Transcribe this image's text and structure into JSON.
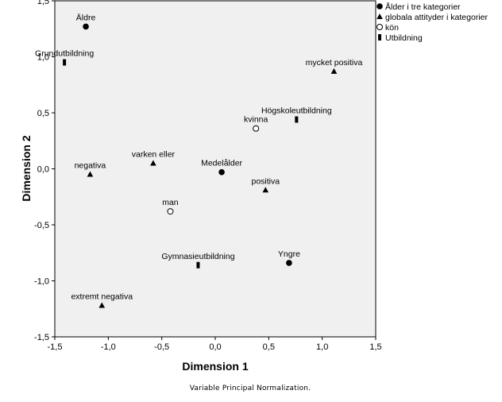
{
  "chart_data": {
    "type": "scatter",
    "xlabel": "Dimension 1",
    "ylabel": "Dimension 2",
    "xlim": [
      -1.5,
      1.5
    ],
    "ylim": [
      -1.5,
      1.5
    ],
    "xticks": [
      "-1,5",
      "-1,0",
      "-0,5",
      "0,0",
      "0,5",
      "1,0",
      "1,5"
    ],
    "yticks": [
      "-1,5",
      "-1,0",
      "-0,5",
      "0,0",
      "0,5",
      "1,0",
      "1,5"
    ],
    "grid": false,
    "legend_position": "top-right, outside plot",
    "footnote": "Variable Principal Normalization.",
    "colors": {
      "plot_background": "#f0f0f0",
      "marker": "#000000"
    },
    "series": [
      {
        "name": "Ålder i tre kategorier",
        "marker": "filled-circle",
        "points": [
          {
            "label": "Äldre",
            "x": -1.21,
            "y": 1.27
          },
          {
            "label": "Medelålder",
            "x": 0.06,
            "y": -0.03
          },
          {
            "label": "Yngre",
            "x": 0.69,
            "y": -0.84
          }
        ]
      },
      {
        "name": "globala attityder i kategorier",
        "marker": "triangle",
        "points": [
          {
            "label": "mycket positiva",
            "x": 1.11,
            "y": 0.87
          },
          {
            "label": "varken eller",
            "x": -0.58,
            "y": 0.05
          },
          {
            "label": "negativa",
            "x": -1.17,
            "y": -0.05
          },
          {
            "label": "positiva",
            "x": 0.47,
            "y": -0.19
          },
          {
            "label": "extremt negativa",
            "x": -1.06,
            "y": -1.22
          }
        ]
      },
      {
        "name": "kön",
        "marker": "open-circle",
        "points": [
          {
            "label": "kvinna",
            "x": 0.38,
            "y": 0.36
          },
          {
            "label": "man",
            "x": -0.42,
            "y": -0.38
          }
        ]
      },
      {
        "name": "Utbildning",
        "marker": "bar",
        "points": [
          {
            "label": "Grundutbildning",
            "x": -1.41,
            "y": 0.95
          },
          {
            "label": "Högskoleutbildning",
            "x": 0.76,
            "y": 0.44
          },
          {
            "label": "Gymnasieutbildning",
            "x": -0.16,
            "y": -0.86
          }
        ]
      }
    ]
  }
}
